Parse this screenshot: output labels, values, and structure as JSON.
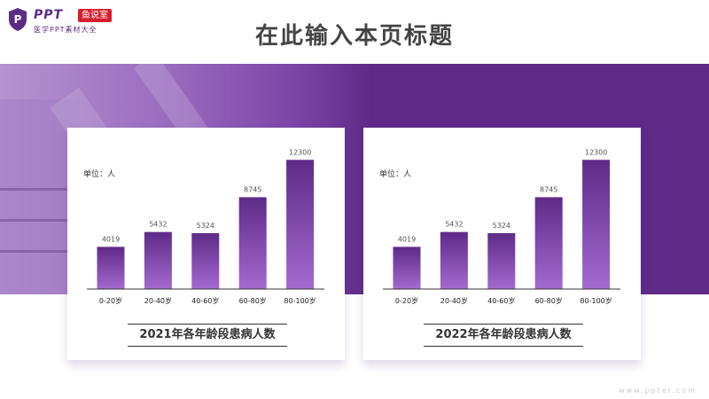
{
  "logo": {
    "brand": "PPT",
    "badge": "鱼说室",
    "tagline": "医学PPT素材大全"
  },
  "page_title": "在此输入本页标题",
  "watermark": "www.ppter.com",
  "colors": {
    "band": "#5e2a87",
    "bar_top": "#5e2a87",
    "bar_bottom": "#a36ad0"
  },
  "chart_data": [
    {
      "type": "bar",
      "title": "2021年各年龄段患病人数",
      "unit_label": "单位：人",
      "categories": [
        "0-20岁",
        "20-40岁",
        "40-60岁",
        "60-80岁",
        "80-100岁"
      ],
      "values": [
        4019,
        5432,
        5324,
        8745,
        12300
      ],
      "ylim": [
        0,
        13000
      ],
      "grid": false
    },
    {
      "type": "bar",
      "title": "2022年各年龄段患病人数",
      "unit_label": "单位：人",
      "categories": [
        "0-20岁",
        "20-40岁",
        "40-60岁",
        "60-80岁",
        "80-100岁"
      ],
      "values": [
        4019,
        5432,
        5324,
        8745,
        12300
      ],
      "ylim": [
        0,
        13000
      ],
      "grid": false
    }
  ]
}
